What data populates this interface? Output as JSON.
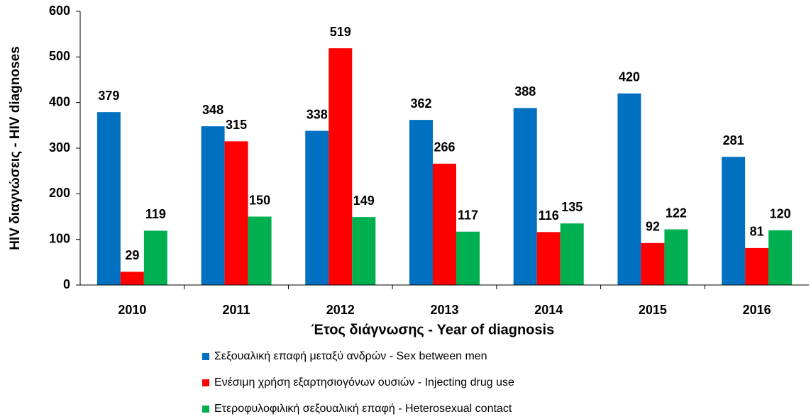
{
  "chart_data": {
    "type": "bar",
    "xlabel": "Έτος διάγνωσης - Year of diagnosis",
    "ylabel": "HIV διαγνώσεις - HIV diagnoses",
    "categories": [
      "2010",
      "2011",
      "2012",
      "2013",
      "2014",
      "2015",
      "2016"
    ],
    "series": [
      {
        "name": "Σεξουαλική επαφή μεταξύ ανδρών - Sex between men",
        "color": "#0070c0",
        "values": [
          379,
          348,
          338,
          362,
          388,
          420,
          281
        ]
      },
      {
        "name": "Ενέσιμη χρήση εξαρτησιογόνων ουσιών - Injecting drug use",
        "color": "#ff0000",
        "values": [
          29,
          315,
          519,
          266,
          116,
          92,
          81
        ]
      },
      {
        "name": "Ετεροφυλοφιλική σεξουαλική επαφή - Heterosexual  contact",
        "color": "#00b050",
        "values": [
          119,
          150,
          149,
          117,
          135,
          122,
          120
        ]
      }
    ],
    "ylim": [
      0,
      600
    ],
    "yticks": [
      0,
      100,
      200,
      300,
      400,
      500,
      600
    ],
    "grid": false
  }
}
